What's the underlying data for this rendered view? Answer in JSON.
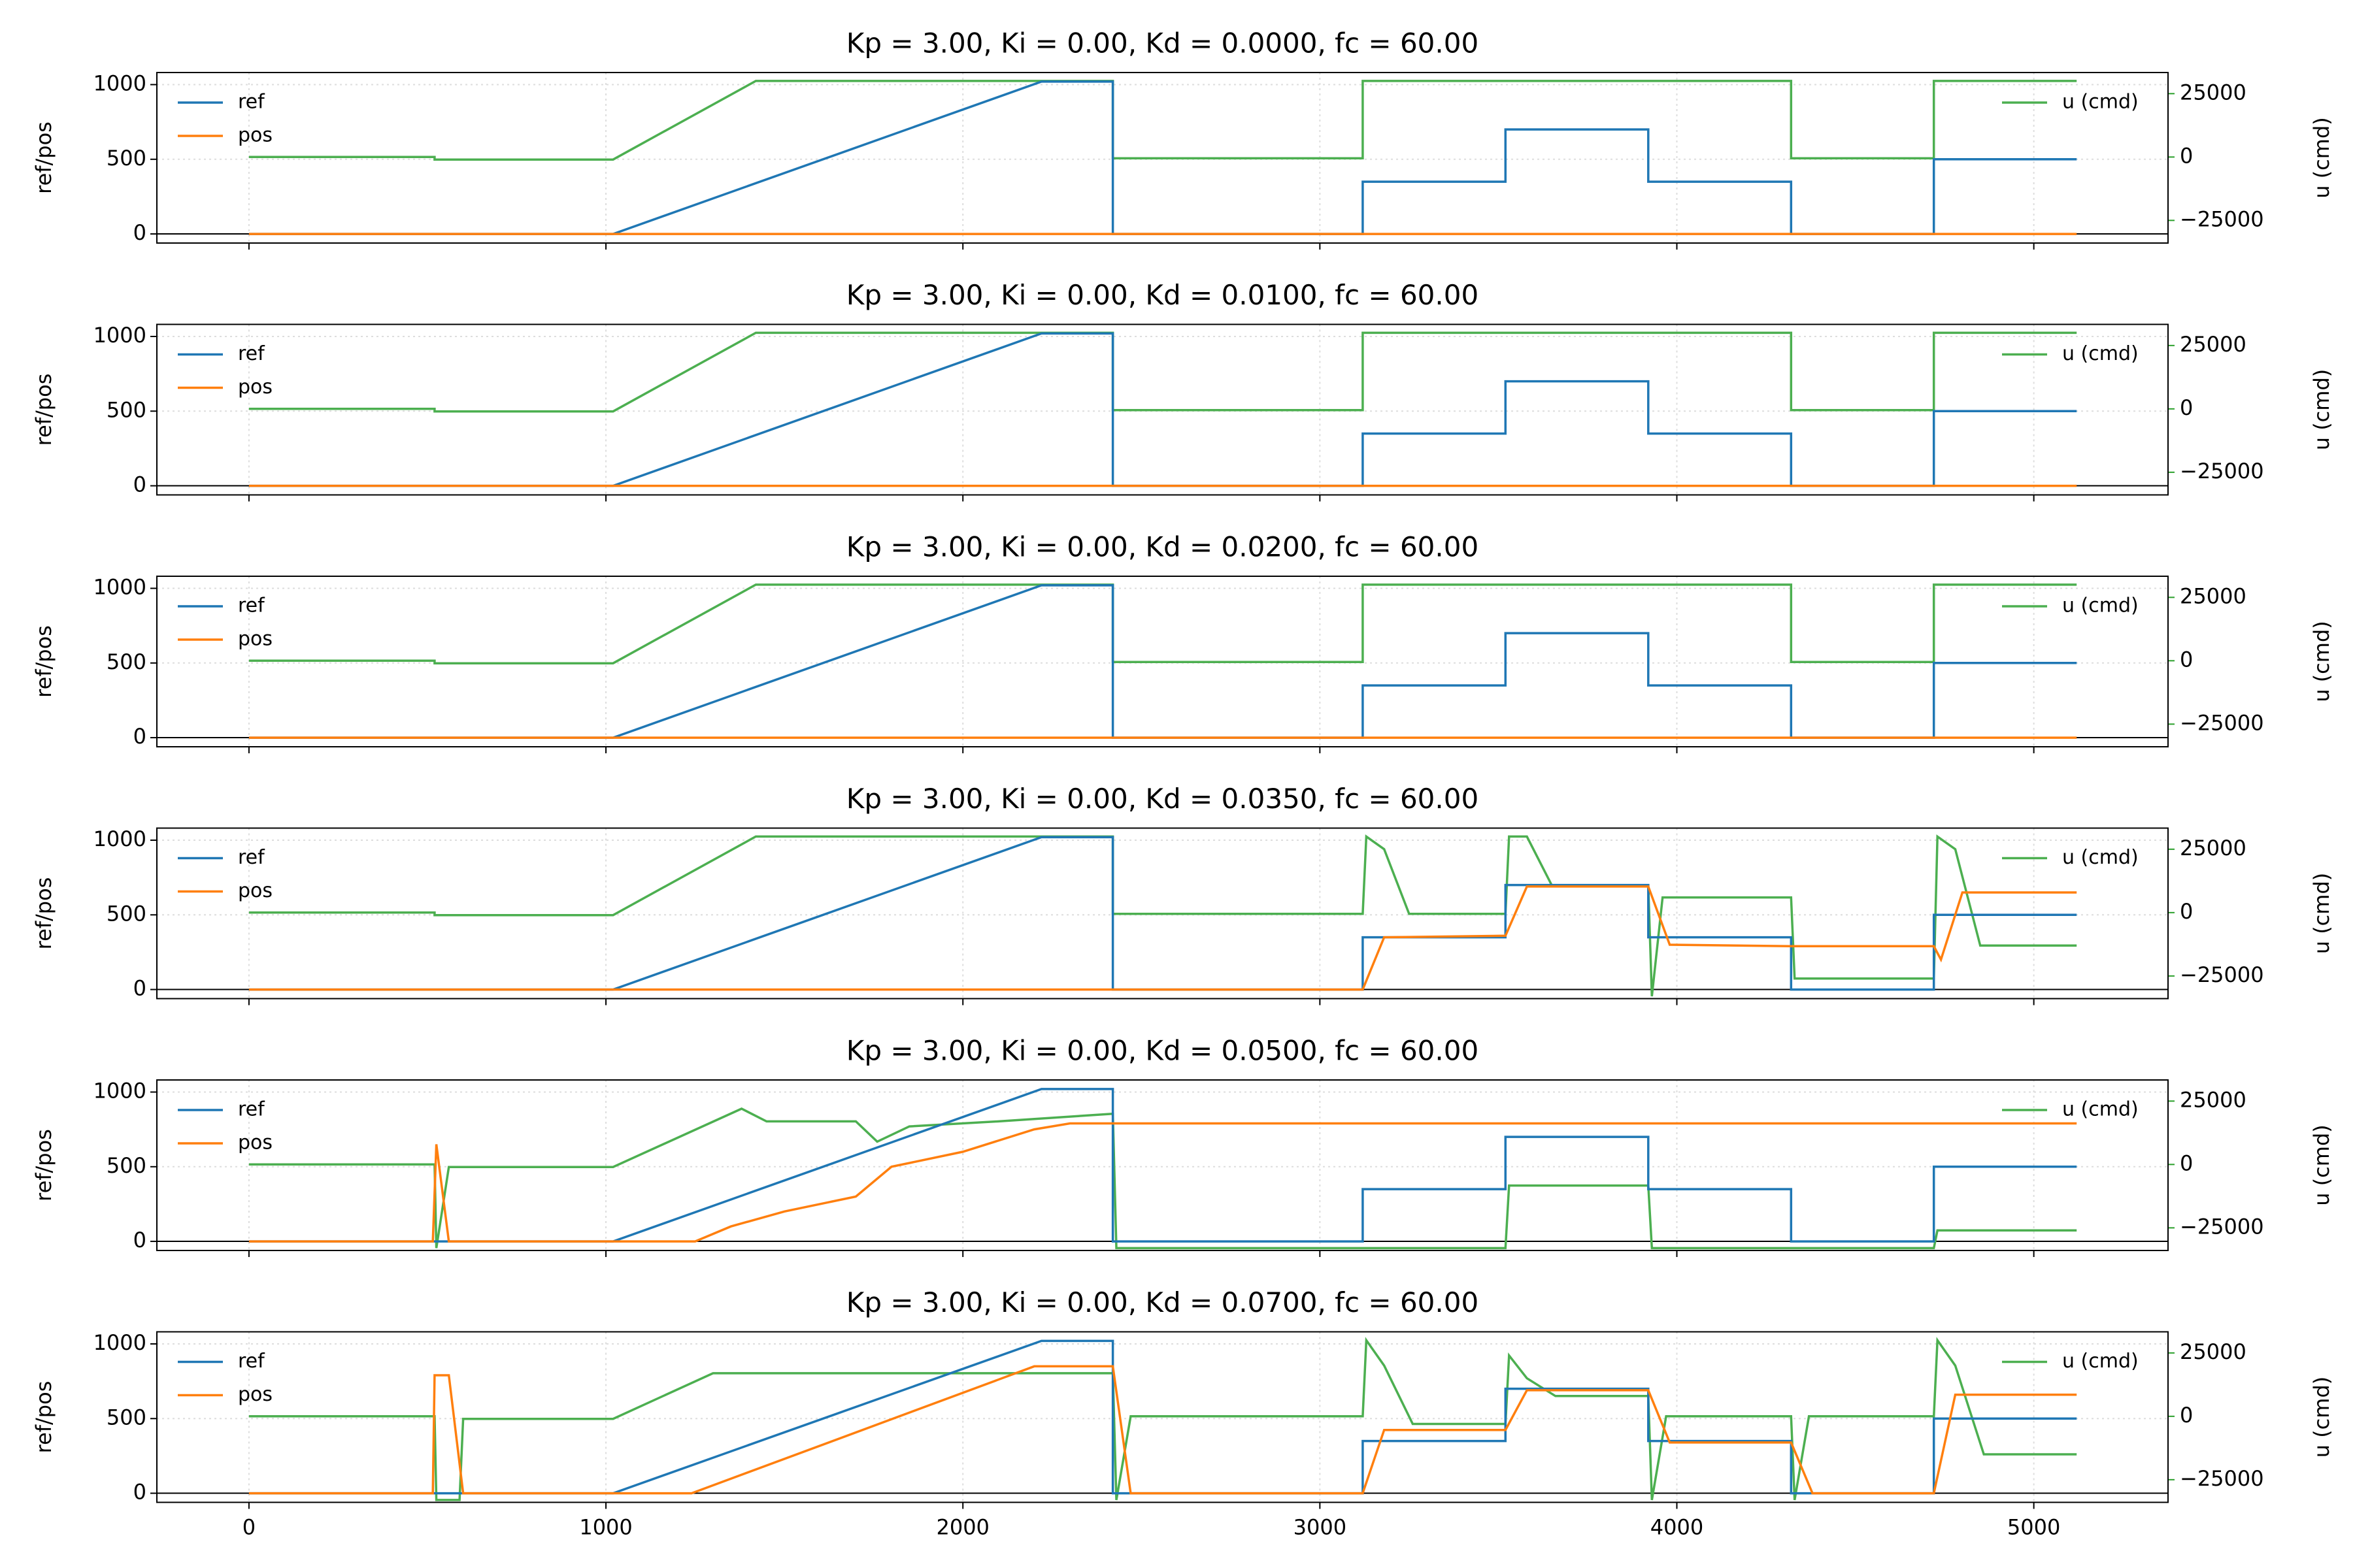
{
  "chart_data": [
    {
      "type": "line",
      "title": "Kp = 3.00,  Ki = 0.00,  Kd = 0.0000,  fc = 60.00",
      "ylabel": "ref/pos",
      "y2label": "u (cmd)",
      "xlim": [
        -258,
        5376
      ],
      "ylim": [
        -61,
        1081
      ],
      "y2lim": [
        -33929,
        33333
      ],
      "xticks": [
        0,
        1000,
        2000,
        3000,
        4000,
        5000
      ],
      "yticks": [
        0,
        500,
        1000
      ],
      "y2ticks": [
        {
          "value": -25000,
          "label": "−25000"
        },
        0,
        25000
      ],
      "hline": 0,
      "grid": true,
      "series": [
        {
          "name": "ref",
          "color": "#1f77b4",
          "x": [
            0,
            1020,
            2220,
            2420,
            2420,
            3120,
            3120,
            3520,
            3520,
            3920,
            3920,
            4320,
            4320,
            4720,
            4720,
            5120
          ],
          "values": [
            0,
            0,
            1020,
            1020,
            0,
            0,
            350,
            350,
            700,
            700,
            350,
            350,
            0,
            0,
            500,
            500
          ]
        },
        {
          "name": "pos",
          "color": "#ff7f0e",
          "x": [
            0,
            5120
          ],
          "values": [
            0,
            0
          ]
        },
        {
          "name": "u (cmd)",
          "color": "#4caf50",
          "axis": "y2",
          "x": [
            0,
            520,
            520,
            1020,
            1420,
            2420,
            2420,
            3120,
            3120,
            4320,
            4320,
            4720,
            4720,
            5120
          ],
          "values": [
            0,
            0,
            -1000,
            -1000,
            30000,
            30000,
            -500,
            -500,
            30000,
            30000,
            -500,
            -500,
            30000,
            30000
          ]
        }
      ]
    },
    {
      "type": "line",
      "title": "Kp = 3.00,  Ki = 0.00,  Kd = 0.0100,  fc = 60.00",
      "ylabel": "ref/pos",
      "y2label": "u (cmd)",
      "xlim": [
        -258,
        5376
      ],
      "ylim": [
        -61,
        1081
      ],
      "y2lim": [
        -33929,
        33333
      ],
      "xticks": [
        0,
        1000,
        2000,
        3000,
        4000,
        5000
      ],
      "yticks": [
        0,
        500,
        1000
      ],
      "y2ticks": [
        {
          "value": -25000,
          "label": "−25000"
        },
        0,
        25000
      ],
      "hline": 0,
      "grid": true,
      "series": [
        {
          "name": "ref",
          "color": "#1f77b4",
          "x": [
            0,
            1020,
            2220,
            2420,
            2420,
            3120,
            3120,
            3520,
            3520,
            3920,
            3920,
            4320,
            4320,
            4720,
            4720,
            5120
          ],
          "values": [
            0,
            0,
            1020,
            1020,
            0,
            0,
            350,
            350,
            700,
            700,
            350,
            350,
            0,
            0,
            500,
            500
          ]
        },
        {
          "name": "pos",
          "color": "#ff7f0e",
          "x": [
            0,
            5120
          ],
          "values": [
            0,
            0
          ]
        },
        {
          "name": "u (cmd)",
          "color": "#4caf50",
          "axis": "y2",
          "x": [
            0,
            520,
            520,
            1020,
            1420,
            2420,
            2420,
            3120,
            3120,
            4320,
            4320,
            4720,
            4720,
            5120
          ],
          "values": [
            0,
            0,
            -1000,
            -1000,
            30000,
            30000,
            -500,
            -500,
            30000,
            30000,
            -500,
            -500,
            30000,
            30000
          ]
        }
      ]
    },
    {
      "type": "line",
      "title": "Kp = 3.00,  Ki = 0.00,  Kd = 0.0200,  fc = 60.00",
      "ylabel": "ref/pos",
      "y2label": "u (cmd)",
      "xlim": [
        -258,
        5376
      ],
      "ylim": [
        -61,
        1081
      ],
      "y2lim": [
        -33929,
        33333
      ],
      "xticks": [
        0,
        1000,
        2000,
        3000,
        4000,
        5000
      ],
      "yticks": [
        0,
        500,
        1000
      ],
      "y2ticks": [
        {
          "value": -25000,
          "label": "−25000"
        },
        0,
        25000
      ],
      "hline": 0,
      "grid": true,
      "series": [
        {
          "name": "ref",
          "color": "#1f77b4",
          "x": [
            0,
            1020,
            2220,
            2420,
            2420,
            3120,
            3120,
            3520,
            3520,
            3920,
            3920,
            4320,
            4320,
            4720,
            4720,
            5120
          ],
          "values": [
            0,
            0,
            1020,
            1020,
            0,
            0,
            350,
            350,
            700,
            700,
            350,
            350,
            0,
            0,
            500,
            500
          ]
        },
        {
          "name": "pos",
          "color": "#ff7f0e",
          "x": [
            0,
            5120
          ],
          "values": [
            0,
            0
          ]
        },
        {
          "name": "u (cmd)",
          "color": "#4caf50",
          "axis": "y2",
          "x": [
            0,
            520,
            520,
            1020,
            1420,
            2420,
            2420,
            3120,
            3120,
            4320,
            4320,
            4720,
            4720,
            5120
          ],
          "values": [
            0,
            0,
            -1000,
            -1000,
            30000,
            30000,
            -500,
            -500,
            30000,
            30000,
            -500,
            -500,
            30000,
            30000
          ]
        }
      ]
    },
    {
      "type": "line",
      "title": "Kp = 3.00,  Ki = 0.00,  Kd = 0.0350,  fc = 60.00",
      "ylabel": "ref/pos",
      "y2label": "u (cmd)",
      "xlim": [
        -258,
        5376
      ],
      "ylim": [
        -61,
        1081
      ],
      "y2lim": [
        -33929,
        33333
      ],
      "xticks": [
        0,
        1000,
        2000,
        3000,
        4000,
        5000
      ],
      "yticks": [
        0,
        500,
        1000
      ],
      "y2ticks": [
        {
          "value": -25000,
          "label": "−25000"
        },
        0,
        25000
      ],
      "hline": 0,
      "grid": true,
      "series": [
        {
          "name": "ref",
          "color": "#1f77b4",
          "x": [
            0,
            1020,
            2220,
            2420,
            2420,
            3120,
            3120,
            3520,
            3520,
            3920,
            3920,
            4320,
            4320,
            4720,
            4720,
            5120
          ],
          "values": [
            0,
            0,
            1020,
            1020,
            0,
            0,
            350,
            350,
            700,
            700,
            350,
            350,
            0,
            0,
            500,
            500
          ]
        },
        {
          "name": "pos",
          "color": "#ff7f0e",
          "x": [
            0,
            3120,
            3180,
            3520,
            3580,
            3920,
            3980,
            4320,
            4720,
            4740,
            4800,
            5120
          ],
          "values": [
            0,
            0,
            350,
            360,
            690,
            690,
            300,
            290,
            290,
            200,
            650,
            650
          ]
        },
        {
          "name": "u (cmd)",
          "color": "#4caf50",
          "axis": "y2",
          "x": [
            0,
            520,
            520,
            1020,
            1420,
            2420,
            2420,
            3120,
            3130,
            3180,
            3250,
            3520,
            3530,
            3580,
            3650,
            3920,
            3930,
            3960,
            4320,
            4330,
            4720,
            4730,
            4780,
            4850,
            5120
          ],
          "values": [
            0,
            0,
            -1000,
            -1000,
            30000,
            30000,
            -500,
            -500,
            30000,
            25000,
            -500,
            -500,
            30000,
            30000,
            10700,
            10700,
            -33000,
            6000,
            6000,
            -26000,
            -26000,
            30000,
            25000,
            -13000,
            -13000
          ]
        }
      ]
    },
    {
      "type": "line",
      "title": "Kp = 3.00,  Ki = 0.00,  Kd = 0.0500,  fc = 60.00",
      "ylabel": "ref/pos",
      "y2label": "u (cmd)",
      "xlim": [
        -258,
        5376
      ],
      "ylim": [
        -61,
        1081
      ],
      "y2lim": [
        -33929,
        33333
      ],
      "xticks": [
        0,
        1000,
        2000,
        3000,
        4000,
        5000
      ],
      "yticks": [
        0,
        500,
        1000
      ],
      "y2ticks": [
        {
          "value": -25000,
          "label": "−25000"
        },
        0,
        25000
      ],
      "hline": 0,
      "grid": true,
      "series": [
        {
          "name": "ref",
          "color": "#1f77b4",
          "x": [
            0,
            1020,
            2220,
            2420,
            2420,
            3120,
            3120,
            3520,
            3520,
            3920,
            3920,
            4320,
            4320,
            4720,
            4720,
            5120
          ],
          "values": [
            0,
            0,
            1020,
            1020,
            0,
            0,
            350,
            350,
            700,
            700,
            350,
            350,
            0,
            0,
            500,
            500
          ]
        },
        {
          "name": "pos",
          "color": "#ff7f0e",
          "x": [
            0,
            515,
            525,
            560,
            1250,
            1350,
            1500,
            1700,
            1800,
            2000,
            2200,
            2300,
            5120
          ],
          "values": [
            0,
            0,
            650,
            0,
            0,
            100,
            200,
            300,
            500,
            600,
            750,
            790,
            790
          ]
        },
        {
          "name": "u (cmd)",
          "color": "#4caf50",
          "axis": "y2",
          "x": [
            0,
            520,
            525,
            560,
            1020,
            1380,
            1450,
            1700,
            1760,
            1850,
            2100,
            2420,
            2430,
            3520,
            3530,
            3920,
            3930,
            4720,
            4730,
            5120
          ],
          "values": [
            0,
            0,
            -33000,
            -1000,
            -1000,
            22000,
            17000,
            17000,
            9000,
            15000,
            17000,
            20000,
            -33000,
            -33000,
            -8300,
            -8300,
            -33000,
            -33000,
            -26000,
            -26000
          ]
        }
      ]
    },
    {
      "type": "line",
      "title": "Kp = 3.00,  Ki = 0.00,  Kd = 0.0700,  fc = 60.00",
      "ylabel": "ref/pos",
      "y2label": "u (cmd)",
      "xlim": [
        -258,
        5376
      ],
      "ylim": [
        -61,
        1081
      ],
      "y2lim": [
        -33929,
        33333
      ],
      "xticks": [
        0,
        1000,
        2000,
        3000,
        4000,
        5000
      ],
      "yticks": [
        0,
        500,
        1000
      ],
      "y2ticks": [
        {
          "value": -25000,
          "label": "−25000"
        },
        0,
        25000
      ],
      "hline": 0,
      "grid": true,
      "series": [
        {
          "name": "ref",
          "color": "#1f77b4",
          "x": [
            0,
            1020,
            2220,
            2420,
            2420,
            3120,
            3120,
            3520,
            3520,
            3920,
            3920,
            4320,
            4320,
            4720,
            4720,
            5120
          ],
          "values": [
            0,
            0,
            1020,
            1020,
            0,
            0,
            350,
            350,
            700,
            700,
            350,
            350,
            0,
            0,
            500,
            500
          ]
        },
        {
          "name": "pos",
          "color": "#ff7f0e",
          "x": [
            0,
            515,
            520,
            560,
            600,
            1240,
            2200,
            2420,
            2470,
            3120,
            3180,
            3520,
            3580,
            3920,
            3980,
            4320,
            4380,
            4720,
            4780,
            5120
          ],
          "values": [
            0,
            0,
            790,
            790,
            0,
            0,
            850,
            850,
            0,
            0,
            424,
            424,
            690,
            690,
            340,
            340,
            0,
            0,
            660,
            660
          ]
        },
        {
          "name": "u (cmd)",
          "color": "#4caf50",
          "axis": "y2",
          "x": [
            0,
            520,
            525,
            590,
            600,
            1020,
            1300,
            2420,
            2430,
            2470,
            3120,
            3130,
            3180,
            3260,
            3520,
            3530,
            3580,
            3660,
            3920,
            3930,
            3970,
            4320,
            4330,
            4370,
            4720,
            4730,
            4780,
            4860,
            5120
          ],
          "values": [
            0,
            0,
            -33000,
            -33000,
            -1000,
            -1000,
            17000,
            17000,
            -33000,
            0,
            0,
            30000,
            20000,
            -3000,
            -3000,
            24000,
            15000,
            8000,
            8000,
            -33000,
            0,
            0,
            -33000,
            0,
            0,
            30000,
            20000,
            -15000,
            -15000
          ]
        }
      ]
    }
  ]
}
